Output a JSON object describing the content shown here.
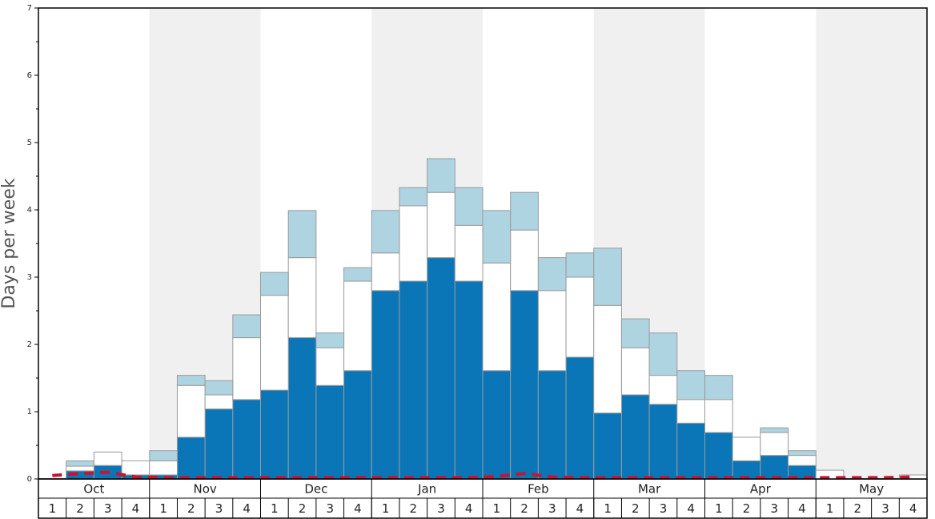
{
  "chart_data": {
    "type": "bar",
    "stacked": true,
    "y_label": "Days per week",
    "months": [
      "Oct",
      "Nov",
      "Dec",
      "Jan",
      "Feb",
      "Mar",
      "Apr",
      "May"
    ],
    "categories": [
      "1",
      "2",
      "3",
      "4",
      "1",
      "2",
      "3",
      "4",
      "1",
      "2",
      "3",
      "4",
      "1",
      "2",
      "3",
      "4",
      "1",
      "2",
      "3",
      "4",
      "1",
      "2",
      "3",
      "4",
      "1",
      "2",
      "3",
      "4",
      "1",
      "2",
      "3",
      "4"
    ],
    "series": [
      {
        "color": "#0a76b7",
        "values": [
          0,
          0.12,
          0.2,
          0.06,
          0.06,
          0.62,
          1.04,
          1.18,
          1.32,
          2.1,
          1.39,
          1.61,
          2.8,
          2.94,
          3.29,
          2.94,
          1.61,
          2.8,
          1.61,
          1.81,
          0.98,
          1.25,
          1.11,
          0.83,
          0.69,
          0.27,
          0.35,
          0.2,
          0,
          0,
          0,
          0
        ]
      },
      {
        "color": "#ffffff",
        "values": [
          0,
          0.07,
          0.2,
          0.21,
          0.21,
          0.77,
          0.21,
          0.92,
          1.41,
          1.19,
          0.56,
          1.33,
          0.56,
          1.12,
          0.97,
          0.83,
          1.6,
          0.9,
          1.19,
          1.19,
          1.6,
          0.7,
          0.43,
          0.35,
          0.49,
          0.35,
          0.34,
          0.15,
          0.13,
          0,
          0,
          0.06
        ]
      },
      {
        "color": "#aed4e1",
        "values": [
          0,
          0.08,
          0,
          0,
          0.15,
          0.15,
          0.21,
          0.34,
          0.34,
          0.7,
          0.22,
          0.2,
          0.63,
          0.27,
          0.5,
          0.56,
          0.78,
          0.56,
          0.49,
          0.36,
          0.85,
          0.43,
          0.63,
          0.43,
          0.36,
          0,
          0.07,
          0.07,
          0,
          0,
          0,
          0
        ]
      }
    ],
    "line": {
      "color": "#d0102c",
      "dashed": true,
      "values": [
        0.05,
        0.08,
        0.1,
        0.03,
        0.02,
        0.02,
        0.02,
        0.02,
        0.02,
        0.02,
        0.02,
        0.02,
        0.02,
        0.02,
        0.02,
        0.02,
        0.04,
        0.08,
        0.03,
        0.02,
        0.02,
        0.02,
        0.02,
        0.02,
        0.02,
        0.02,
        0.02,
        0.02,
        0.02,
        0.02,
        0.02,
        0.03
      ]
    },
    "ylim": [
      0,
      7
    ],
    "yticks": [
      0,
      1,
      2,
      3,
      4,
      5,
      6,
      7
    ],
    "yminorticks": [
      0.5,
      1.5,
      2.5,
      3.5,
      4.5,
      5.5,
      6.5
    ],
    "shade_alternate_months": true
  }
}
